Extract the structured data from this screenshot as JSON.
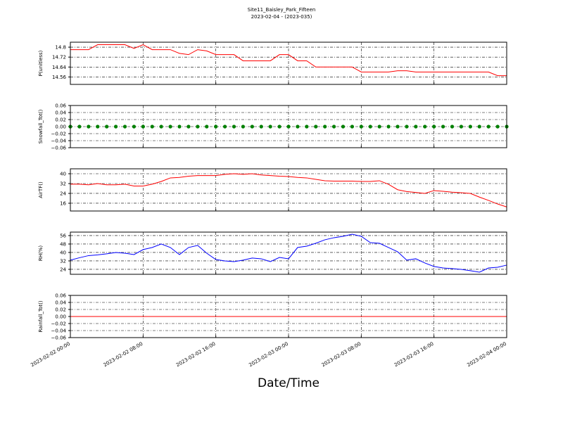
{
  "title": "Site11_Baisley_Park_Fifteen",
  "subtitle": "2023-02-04 - (2023-035)",
  "xlabel": "Date/Time",
  "x": [
    "2023-02-02 00:00",
    "2023-02-02 01:00",
    "2023-02-02 02:00",
    "2023-02-02 03:00",
    "2023-02-02 04:00",
    "2023-02-02 05:00",
    "2023-02-02 06:00",
    "2023-02-02 07:00",
    "2023-02-02 08:00",
    "2023-02-02 09:00",
    "2023-02-02 10:00",
    "2023-02-02 11:00",
    "2023-02-02 12:00",
    "2023-02-02 13:00",
    "2023-02-02 14:00",
    "2023-02-02 15:00",
    "2023-02-02 16:00",
    "2023-02-02 17:00",
    "2023-02-02 18:00",
    "2023-02-02 19:00",
    "2023-02-02 20:00",
    "2023-02-02 21:00",
    "2023-02-02 22:00",
    "2023-02-02 23:00",
    "2023-02-03 00:00",
    "2023-02-03 01:00",
    "2023-02-03 02:00",
    "2023-02-03 03:00",
    "2023-02-03 04:00",
    "2023-02-03 05:00",
    "2023-02-03 06:00",
    "2023-02-03 07:00",
    "2023-02-03 08:00",
    "2023-02-03 09:00",
    "2023-02-03 10:00",
    "2023-02-03 11:00",
    "2023-02-03 12:00",
    "2023-02-03 13:00",
    "2023-02-03 14:00",
    "2023-02-03 15:00",
    "2023-02-03 16:00",
    "2023-02-03 17:00",
    "2023-02-03 18:00",
    "2023-02-03 19:00",
    "2023-02-03 20:00",
    "2023-02-03 21:00",
    "2023-02-03 22:00",
    "2023-02-03 23:00",
    "2023-02-04 00:00"
  ],
  "xlim": [
    "2023-02-02 00:00",
    "2023-02-04 00:00"
  ],
  "xticks": [
    "2023-02-02 00:00",
    "2023-02-02 08:00",
    "2023-02-02 16:00",
    "2023-02-03 00:00",
    "2023-02-03 08:00",
    "2023-02-03 16:00",
    "2023-02-04 00:00"
  ],
  "chart_data": [
    {
      "type": "line",
      "ylabel": "P(unitless)",
      "ylim": [
        14.5,
        14.84
      ],
      "yticks": [
        14.56,
        14.64,
        14.72,
        14.8
      ],
      "grid": true,
      "series": [
        {
          "color": "#ff0000",
          "values": [
            14.78,
            14.78,
            14.78,
            14.82,
            14.82,
            14.82,
            14.82,
            14.79,
            14.82,
            14.78,
            14.78,
            14.78,
            14.75,
            14.74,
            14.78,
            14.77,
            14.74,
            14.74,
            14.74,
            14.69,
            14.69,
            14.69,
            14.69,
            14.74,
            14.74,
            14.69,
            14.69,
            14.64,
            14.64,
            14.64,
            14.64,
            14.64,
            14.6,
            14.6,
            14.6,
            14.6,
            14.61,
            14.61,
            14.6,
            14.6,
            14.6,
            14.6,
            14.6,
            14.6,
            14.6,
            14.6,
            14.6,
            14.57,
            14.57
          ]
        }
      ]
    },
    {
      "type": "scatter",
      "ylabel": "Snowfall_Tot()",
      "ylim": [
        -0.06,
        0.06
      ],
      "yticks": [
        {
          "value": -0.06,
          "label": "−0.06"
        },
        {
          "value": -0.04,
          "label": "−0.04"
        },
        {
          "value": -0.02,
          "label": "−0.02"
        },
        {
          "value": 0,
          "label": "0.00"
        },
        0.02,
        0.04,
        0.06
      ],
      "grid": true,
      "series": [
        {
          "color": "#008000",
          "values": [
            0,
            0,
            0,
            0,
            0,
            0,
            0,
            0,
            0,
            0,
            0,
            0,
            0,
            0,
            0,
            0,
            0,
            0,
            0,
            0,
            0,
            0,
            0,
            0,
            0,
            0,
            0,
            0,
            0,
            0,
            0,
            0,
            0,
            0,
            0,
            0,
            0,
            0,
            0,
            0,
            0,
            0,
            0,
            0,
            0,
            0,
            0,
            0,
            0
          ]
        }
      ]
    },
    {
      "type": "line",
      "ylabel": "AirTF()",
      "ylim": [
        9.7,
        44
      ],
      "yticks": [
        16,
        24,
        32,
        40
      ],
      "grid": true,
      "series": [
        {
          "color": "#ff0000",
          "values": [
            31.5,
            31.5,
            31,
            32,
            31,
            31,
            31.5,
            30,
            30,
            31.5,
            33.7,
            36.6,
            37,
            38,
            38.5,
            38.5,
            38.5,
            39.5,
            40,
            39.5,
            40,
            39,
            38.5,
            38,
            37.7,
            37,
            36.6,
            35.4,
            34.3,
            34,
            34,
            34,
            33.7,
            33.7,
            34.3,
            31.4,
            27,
            25.5,
            24.8,
            24,
            26.3,
            25.7,
            25,
            24.6,
            24,
            21,
            18.3,
            15.4,
            13
          ]
        }
      ]
    },
    {
      "type": "line",
      "ylabel": "RH(%)",
      "ylim": [
        19.3,
        59.3
      ],
      "yticks": [
        24,
        32,
        40,
        48,
        56
      ],
      "grid": true,
      "series": [
        {
          "color": "#0000ff",
          "values": [
            32.7,
            35,
            37,
            37.7,
            38.7,
            40,
            39.3,
            38,
            42.7,
            44.7,
            48,
            44.7,
            38,
            44.7,
            46.7,
            39.3,
            33.3,
            32,
            31.3,
            32.7,
            34.7,
            34,
            31.3,
            35.3,
            34,
            44.7,
            46,
            48.7,
            52,
            54,
            55.3,
            57.3,
            55.3,
            49.3,
            48.7,
            44.7,
            40.7,
            32.7,
            34,
            30,
            26.7,
            25.3,
            24.7,
            24,
            22.7,
            21.3,
            25.3,
            26,
            28
          ]
        }
      ]
    },
    {
      "type": "line",
      "ylabel": "Rainfall_Tot()",
      "ylim": [
        -0.06,
        0.06
      ],
      "yticks": [
        {
          "value": -0.06,
          "label": "−0.06"
        },
        {
          "value": -0.04,
          "label": "−0.04"
        },
        {
          "value": -0.02,
          "label": "−0.02"
        },
        {
          "value": 0,
          "label": "0.00"
        },
        0.02,
        0.04,
        0.06
      ],
      "grid": true,
      "series": [
        {
          "color": "#ff0000",
          "values": [
            0,
            0,
            0,
            0,
            0,
            0,
            0,
            0,
            0,
            0,
            0,
            0,
            0,
            0,
            0,
            0,
            0,
            0,
            0,
            0,
            0,
            0,
            0,
            0,
            0,
            0,
            0,
            0,
            0,
            0,
            0,
            0,
            0,
            0,
            0,
            0,
            0,
            0,
            0,
            0,
            0,
            0,
            0,
            0,
            0,
            0,
            0,
            0,
            0
          ]
        }
      ]
    }
  ]
}
